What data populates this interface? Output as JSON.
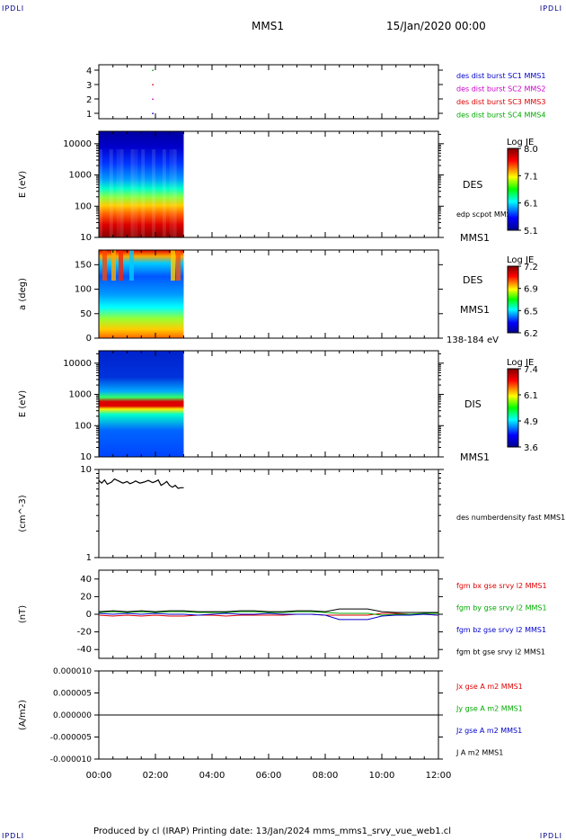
{
  "corners": {
    "tl": "IPDLI",
    "tr": "IPDLI",
    "bl": "IPDLI",
    "br": "IPDLI"
  },
  "header": {
    "spacecraft": "MMS1",
    "datetime": "15/Jan/2020 00:00"
  },
  "footer": "Produced by cl (IRAP)   Printing date: 13/Jan/2024   mms_mms1_srvy_vue_web1.cl",
  "colors": {
    "blue": "#0000cc",
    "magenta": "#cc00cc",
    "red": "#dd0000",
    "green": "#00aa00",
    "black": "#000000"
  },
  "chart_data": [
    {
      "type": "scatter",
      "id": "burst",
      "yticks": [
        "4",
        "3",
        "2",
        "1"
      ],
      "legend": [
        {
          "label": "des dist burst SC1 MMS1",
          "color": "#0000cc"
        },
        {
          "label": "des dist burst SC2 MMS2",
          "color": "#cc00cc"
        },
        {
          "label": "des dist burst SC3 MMS3",
          "color": "#dd0000"
        },
        {
          "label": "des dist burst SC4 MMS4",
          "color": "#00aa00"
        }
      ],
      "points": [
        {
          "t": 1.9,
          "y": 4,
          "color": "#00aa00"
        },
        {
          "t": 1.9,
          "y": 3,
          "color": "#dd0000"
        },
        {
          "t": 1.9,
          "y": 2,
          "color": "#cc00cc"
        },
        {
          "t": 1.9,
          "y": 1,
          "color": "#0000cc"
        }
      ]
    },
    {
      "type": "heatmap",
      "id": "des_energy",
      "ylabel": "E (eV)",
      "yticks": [
        "10000",
        "1000",
        "100",
        "10"
      ],
      "yscale": "log",
      "ylim": [
        10,
        25000
      ],
      "instrument": "DES",
      "extra": "edp scpot MMS1",
      "sc": "MMS1",
      "colorbar": {
        "title": "Log JE",
        "ticks": [
          "8.0",
          "7.1",
          "6.1",
          "5.1"
        ]
      },
      "data_end_hour": 3.0
    },
    {
      "type": "heatmap",
      "id": "des_pitch",
      "ylabel": "a (deg)",
      "yticks": [
        "150",
        "100",
        "50",
        "0"
      ],
      "ylim": [
        0,
        180
      ],
      "instrument": "DES",
      "sc": "MMS1",
      "range": "138-184 eV",
      "colorbar": {
        "title": "Log JE",
        "ticks": [
          "7.2",
          "6.9",
          "6.5",
          "6.2"
        ]
      },
      "data_end_hour": 3.0
    },
    {
      "type": "heatmap",
      "id": "dis_energy",
      "ylabel": "E (eV)",
      "yticks": [
        "10000",
        "1000",
        "100",
        "10"
      ],
      "yscale": "log",
      "ylim": [
        10,
        25000
      ],
      "instrument": "DIS",
      "sc": "MMS1",
      "colorbar": {
        "title": "Log JE",
        "ticks": [
          "7.4",
          "6.1",
          "4.9",
          "3.6"
        ]
      },
      "data_end_hour": 3.0
    },
    {
      "type": "line",
      "id": "density",
      "ylabel": "(cm^-3)",
      "yticks": [
        "10",
        "1"
      ],
      "yscale": "log",
      "ylim": [
        1,
        10
      ],
      "series": [
        {
          "name": "des numberdensity fast MMS1",
          "color": "#000000",
          "t": [
            0.0,
            0.1,
            0.2,
            0.3,
            0.45,
            0.55,
            0.7,
            0.85,
            1.0,
            1.1,
            1.2,
            1.3,
            1.45,
            1.6,
            1.75,
            1.9,
            2.0,
            2.1,
            2.2,
            2.3,
            2.4,
            2.5,
            2.6,
            2.7,
            2.8,
            2.9,
            3.0
          ],
          "y": [
            7.5,
            7.0,
            7.6,
            6.8,
            7.2,
            7.8,
            7.4,
            7.0,
            7.3,
            6.9,
            7.1,
            7.4,
            7.0,
            7.2,
            7.5,
            7.1,
            7.3,
            7.6,
            6.6,
            6.9,
            7.3,
            6.6,
            6.3,
            6.6,
            6.1,
            6.2,
            6.2
          ]
        }
      ]
    },
    {
      "type": "line",
      "id": "fgm",
      "ylabel": "(nT)",
      "yticks": [
        "40",
        "20",
        "0",
        "-20",
        "-40"
      ],
      "ylim": [
        -50,
        50
      ],
      "series": [
        {
          "name": "fgm bx gse srvy l2 MMS1",
          "color": "#dd0000",
          "t": [
            0,
            0.5,
            1,
            1.5,
            2,
            2.5,
            3,
            3.5,
            4,
            4.5,
            5,
            5.5,
            6,
            6.5,
            7,
            7.5,
            8,
            8.5,
            9,
            9.5,
            10,
            10.5,
            11,
            11.5,
            12
          ],
          "y": [
            -1,
            -2,
            -1,
            -2,
            -1,
            -2,
            -2,
            -1,
            -1,
            -2,
            -1,
            -1,
            -1,
            -1,
            0,
            0,
            -1,
            -1,
            -1,
            -1,
            1,
            1,
            0,
            0,
            -1
          ]
        },
        {
          "name": "fgm by gse srvy l2 MMS1",
          "color": "#00aa00",
          "t": [
            0,
            0.5,
            1,
            1.5,
            2,
            2.5,
            3,
            3.5,
            4,
            4.5,
            5,
            5.5,
            6,
            6.5,
            7,
            7.5,
            8,
            8.5,
            9,
            9.5,
            10,
            10.5,
            11,
            11.5,
            12
          ],
          "y": [
            2,
            3,
            2,
            3,
            2,
            3,
            3,
            2,
            2,
            2,
            3,
            3,
            2,
            2,
            3,
            3,
            2,
            1,
            1,
            1,
            -1,
            0,
            0,
            1,
            1
          ]
        },
        {
          "name": "fgm bz gse srvy l2 MMS1",
          "color": "#0000cc",
          "t": [
            0,
            0.5,
            1,
            1.5,
            2,
            2.5,
            3,
            3.5,
            4,
            4.5,
            5,
            5.5,
            6,
            6.5,
            7,
            7.5,
            8,
            8.5,
            9,
            9.5,
            10,
            10.5,
            11,
            11.5,
            12
          ],
          "y": [
            1,
            0,
            1,
            0,
            1,
            0,
            0,
            -1,
            0,
            1,
            0,
            0,
            1,
            0,
            0,
            0,
            -1,
            -6,
            -6,
            -6,
            -2,
            -1,
            -1,
            0,
            -1
          ]
        },
        {
          "name": "fgm bt gse srvy l2 MMS1",
          "color": "#000000",
          "t": [
            0,
            0.5,
            1,
            1.5,
            2,
            2.5,
            3,
            3.5,
            4,
            4.5,
            5,
            5.5,
            6,
            6.5,
            7,
            7.5,
            8,
            8.5,
            9,
            9.5,
            10,
            10.5,
            11,
            11.5,
            12
          ],
          "y": [
            3,
            4,
            3,
            4,
            3,
            4,
            4,
            3,
            3,
            3,
            4,
            4,
            3,
            3,
            4,
            4,
            3,
            6,
            6,
            6,
            3,
            2,
            2,
            2,
            2
          ]
        }
      ]
    },
    {
      "type": "line",
      "id": "current",
      "ylabel": "(A/m2)",
      "yticks": [
        "0.000010",
        "0.000005",
        "0.000000",
        "-0.000005",
        "-0.000010"
      ],
      "ylim": [
        -1e-05,
        1e-05
      ],
      "series": [
        {
          "name": "Jx gse A m2 MMS1",
          "color": "#dd0000"
        },
        {
          "name": "Jy gse A m2 MMS1",
          "color": "#00aa00"
        },
        {
          "name": "Jz gse A m2 MMS1",
          "color": "#0000cc"
        },
        {
          "name": "J A m2 MMS1",
          "color": "#000000"
        }
      ],
      "xticks": [
        "00:00",
        "02:00",
        "04:00",
        "06:00",
        "08:00",
        "10:00",
        "12:00"
      ],
      "xlim": [
        0,
        12
      ]
    }
  ]
}
